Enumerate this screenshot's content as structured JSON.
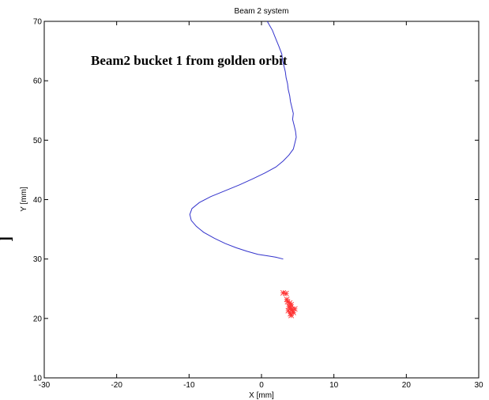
{
  "chart_data": {
    "type": "line",
    "title": "Beam 2 system",
    "xlabel": "X [mm]",
    "ylabel": "Y [mm]",
    "xlim": [
      -30,
      30
    ],
    "ylim": [
      10,
      70
    ],
    "xticks": [
      -30,
      -20,
      -10,
      0,
      10,
      20,
      30
    ],
    "yticks": [
      10,
      20,
      30,
      40,
      50,
      60,
      70
    ],
    "grid": false,
    "annotation": "Beam2 bucket 1 from golden orbit",
    "side_mark": "[",
    "colors": {
      "line": "#3333cc",
      "markers": "#ff3333"
    },
    "series": [
      {
        "type": "line",
        "x": [
          0.8,
          1.5,
          2.0,
          2.4,
          2.8,
          2.9,
          3.1,
          3.3,
          3.4,
          3.6,
          3.7,
          3.9,
          4.0,
          4.2,
          4.4,
          4.3,
          4.5,
          4.7,
          4.8,
          4.6,
          4.4,
          3.8,
          3.0,
          2.0,
          0.5,
          -1.2,
          -3.0,
          -5.0,
          -7.0,
          -8.6,
          -9.6,
          -9.9,
          -9.7,
          -9.0,
          -8.0,
          -6.5,
          -5.0,
          -3.5,
          -2.0,
          -0.5,
          1.0,
          2.0,
          3.0
        ],
        "y": [
          70.0,
          68.5,
          67.0,
          65.8,
          64.5,
          63.5,
          62.5,
          61.5,
          60.5,
          59.5,
          58.5,
          57.5,
          56.5,
          55.5,
          54.5,
          53.5,
          52.5,
          51.5,
          50.5,
          49.5,
          48.5,
          47.5,
          46.5,
          45.5,
          44.5,
          43.5,
          42.5,
          41.5,
          40.5,
          39.5,
          38.5,
          37.5,
          36.5,
          35.5,
          34.5,
          33.5,
          32.6,
          31.9,
          31.3,
          30.8,
          30.5,
          30.3,
          30.0
        ]
      },
      {
        "type": "scatter",
        "marker": "x",
        "x": [
          3.0,
          3.4,
          3.6,
          3.9,
          4.1,
          3.8,
          4.0,
          4.2,
          3.7,
          4.3,
          4.4,
          4.0,
          3.5,
          4.1,
          4.6
        ],
        "y": [
          24.3,
          24.2,
          22.8,
          22.6,
          22.3,
          22.0,
          21.8,
          21.5,
          21.3,
          21.2,
          21.0,
          20.8,
          23.2,
          20.5,
          21.6
        ]
      }
    ]
  }
}
